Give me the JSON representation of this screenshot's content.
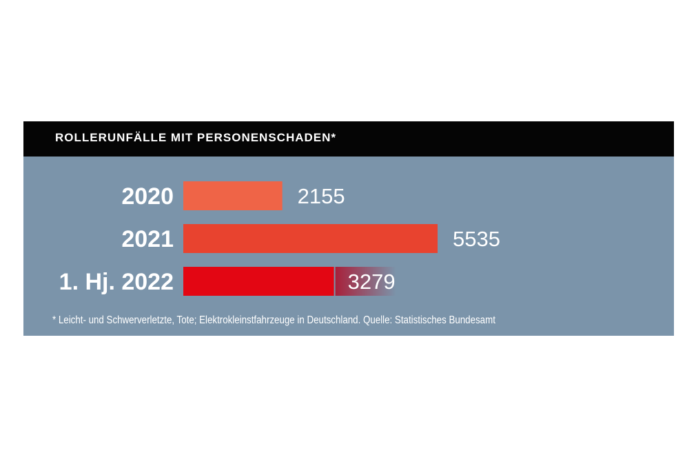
{
  "colors": {
    "panel_background": "#7b94aa",
    "header_background": "#050505",
    "bar_2020": "#ef6447",
    "bar_2021": "#e8432f",
    "bar_2022": "#e30613",
    "bar_2022_projection": "#a8203a",
    "text": "#ffffff"
  },
  "chart_data": {
    "type": "bar",
    "orientation": "horizontal",
    "title": "ROLLERUNFÄLLE MIT PERSONENSCHADEN*",
    "categories": [
      "2020",
      "2021",
      "1. Hj. 2022"
    ],
    "values": [
      2155,
      5535,
      3279
    ],
    "value_labels": [
      "2155",
      "5535",
      "3279"
    ],
    "projection_fade_to": 4600,
    "footnote": "* Leicht- und Schwerverletzte, Tote; Elektrokleinstfahrzeuge in Deutschland. Quelle: Statistisches Bundesamt"
  }
}
